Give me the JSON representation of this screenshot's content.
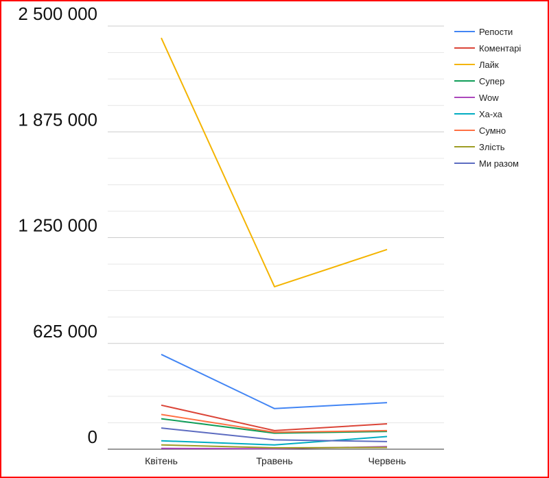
{
  "chart_data": {
    "type": "line",
    "title": "",
    "xlabel": "",
    "ylabel": "",
    "categories": [
      "Квітень",
      "Травень",
      "Червень"
    ],
    "ylim": [
      0,
      2500000
    ],
    "y_ticks": [
      {
        "value": 0,
        "label": "0"
      },
      {
        "value": 625000,
        "label": "625 000"
      },
      {
        "value": 1250000,
        "label": "1 250 000"
      },
      {
        "value": 1875000,
        "label": "1 875 000"
      },
      {
        "value": 2500000,
        "label": "2 500 000"
      }
    ],
    "grid": true,
    "legend": "right",
    "series": [
      {
        "name": "Репости",
        "color": "#4285f4",
        "values": [
          560000,
          240000,
          275000
        ]
      },
      {
        "name": "Коментарі",
        "color": "#db4437",
        "values": [
          260000,
          110000,
          150000
        ]
      },
      {
        "name": "Лайк",
        "color": "#f4b400",
        "values": [
          2430000,
          960000,
          1180000
        ]
      },
      {
        "name": "Супер",
        "color": "#0f9d58",
        "values": [
          180000,
          95000,
          105000
        ]
      },
      {
        "name": "Wow",
        "color": "#ab47bc",
        "values": [
          5000,
          3000,
          15000
        ]
      },
      {
        "name": "Ха-ха",
        "color": "#00acc1",
        "values": [
          50000,
          25000,
          75000
        ]
      },
      {
        "name": "Сумно",
        "color": "#ff7043",
        "values": [
          205000,
          100000,
          110000
        ]
      },
      {
        "name": "Злість",
        "color": "#9e9d24",
        "values": [
          25000,
          8000,
          10000
        ]
      },
      {
        "name": "Ми разом",
        "color": "#5c6bc0",
        "values": [
          125000,
          55000,
          45000
        ]
      }
    ]
  }
}
